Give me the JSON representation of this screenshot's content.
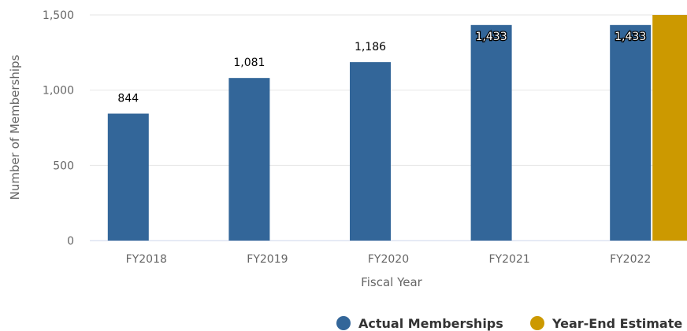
{
  "chart_data": {
    "type": "bar",
    "xlabel": "Fiscal Year",
    "ylabel": "Number of Memberships",
    "categories": [
      "FY2018",
      "FY2019",
      "FY2020",
      "FY2021",
      "FY2022"
    ],
    "ylim": [
      0,
      1500
    ],
    "yticks": [
      0,
      500,
      1000,
      1500
    ],
    "ytick_labels": [
      "0",
      "500",
      "1,000",
      "1,500"
    ],
    "grid": true,
    "legend_position": "bottom-right",
    "series": [
      {
        "name": "Actual Memberships",
        "color": "#336699",
        "values": [
          844,
          1081,
          1186,
          1433,
          1433
        ],
        "labels": [
          "844",
          "1,081",
          "1,186",
          "1,433",
          "1,433"
        ]
      },
      {
        "name": "Year-End Estimate",
        "color": "#cc9900",
        "values": [
          null,
          null,
          null,
          null,
          1500
        ],
        "labels": [
          "",
          "",
          "",
          "",
          ""
        ]
      }
    ]
  }
}
